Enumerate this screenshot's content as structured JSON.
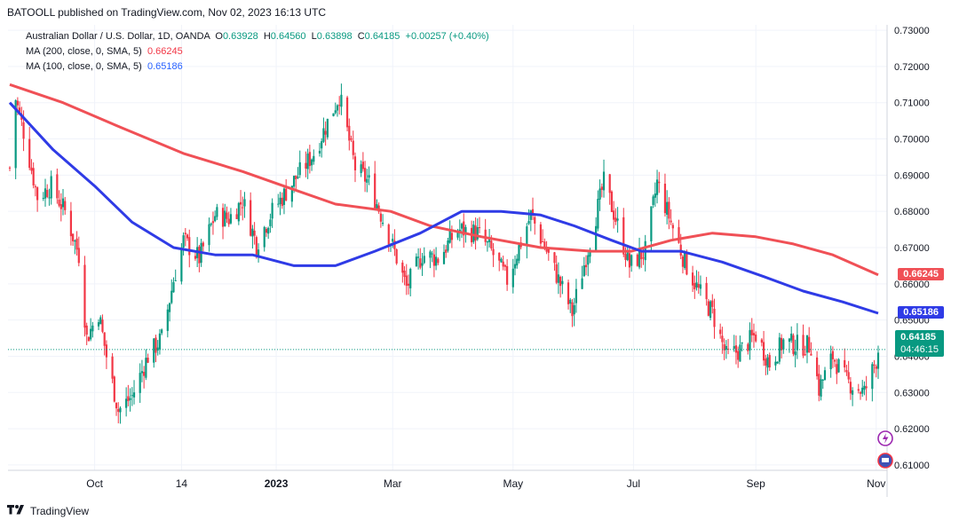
{
  "header": {
    "publisher_line": "BATOOLL published on TradingView.com, Nov 02, 2023 16:13 UTC"
  },
  "legend": {
    "symbol": "Australian Dollar / U.S. Dollar, 1D, OANDA",
    "o_label": "O",
    "o": "0.63928",
    "h_label": "H",
    "h": "0.64560",
    "l_label": "L",
    "l": "0.63898",
    "c_label": "C",
    "c": "0.64185",
    "change": "+0.00257 (+0.40%)",
    "ma200_label": "MA (200, close, 0, SMA, 5)",
    "ma200_value": "0.66245",
    "ma100_label": "MA (100, close, 0, SMA, 5)",
    "ma100_value": "0.65186"
  },
  "price_tags": {
    "ma200": "0.66245",
    "ma100": "0.65186",
    "last": "0.64185",
    "countdown": "04:46:15"
  },
  "colors": {
    "up": "#089981",
    "down": "#f23645",
    "ma200": "#f05056",
    "ma100": "#2f3be6",
    "grid": "#f0f3fa",
    "axis_text": "#131722"
  },
  "chart_data": {
    "type": "candlestick",
    "symbol": "AUDUSD",
    "timeframe": "1D",
    "y_ticks": [
      "0.73000",
      "0.72000",
      "0.71000",
      "0.70000",
      "0.69000",
      "0.68000",
      "0.67000",
      "0.66000",
      "0.65000",
      "0.64000",
      "0.63000",
      "0.62000",
      "0.61000"
    ],
    "ylim": [
      0.6085,
      0.7315
    ],
    "x_ticks": [
      {
        "label": "Oct",
        "date": "2022-10-01"
      },
      {
        "label": "14",
        "date": "2022-11-14"
      },
      {
        "label": "2023",
        "date": "2023-01-01"
      },
      {
        "label": "Mar",
        "date": "2023-03-01"
      },
      {
        "label": "May",
        "date": "2023-05-01"
      },
      {
        "label": "Jul",
        "date": "2023-07-01"
      },
      {
        "label": "Sep",
        "date": "2023-09-01"
      },
      {
        "label": "Nov",
        "date": "2023-11-01"
      }
    ],
    "xlim": [
      "2022-08-19",
      "2023-11-02"
    ],
    "close_path": [
      [
        "2022-08-19",
        0.692
      ],
      [
        "2022-08-22",
        0.711
      ],
      [
        "2022-08-26",
        0.702
      ],
      [
        "2022-09-02",
        0.684
      ],
      [
        "2022-09-09",
        0.687
      ],
      [
        "2022-09-16",
        0.68
      ],
      [
        "2022-09-23",
        0.668
      ],
      [
        "2022-09-27",
        0.645
      ],
      [
        "2022-10-03",
        0.652
      ],
      [
        "2022-10-07",
        0.64
      ],
      [
        "2022-10-13",
        0.625
      ],
      [
        "2022-10-20",
        0.629
      ],
      [
        "2022-10-28",
        0.64
      ],
      [
        "2022-11-04",
        0.645
      ],
      [
        "2022-11-10",
        0.661
      ],
      [
        "2022-11-15",
        0.672
      ],
      [
        "2022-11-23",
        0.667
      ],
      [
        "2022-12-01",
        0.679
      ],
      [
        "2022-12-08",
        0.678
      ],
      [
        "2022-12-15",
        0.683
      ],
      [
        "2022-12-22",
        0.671
      ],
      [
        "2022-12-30",
        0.68
      ],
      [
        "2023-01-12",
        0.69
      ],
      [
        "2023-01-20",
        0.696
      ],
      [
        "2023-02-02",
        0.712
      ],
      [
        "2023-02-10",
        0.692
      ],
      [
        "2023-02-17",
        0.688
      ],
      [
        "2023-02-28",
        0.672
      ],
      [
        "2023-03-08",
        0.659
      ],
      [
        "2023-03-16",
        0.668
      ],
      [
        "2023-03-24",
        0.667
      ],
      [
        "2023-04-03",
        0.675
      ],
      [
        "2023-04-13",
        0.674
      ],
      [
        "2023-04-20",
        0.669
      ],
      [
        "2023-04-28",
        0.661
      ],
      [
        "2023-05-10",
        0.679
      ],
      [
        "2023-05-18",
        0.669
      ],
      [
        "2023-05-31",
        0.652
      ],
      [
        "2023-06-09",
        0.672
      ],
      [
        "2023-06-16",
        0.688
      ],
      [
        "2023-06-22",
        0.678
      ],
      [
        "2023-06-29",
        0.665
      ],
      [
        "2023-07-07",
        0.669
      ],
      [
        "2023-07-13",
        0.688
      ],
      [
        "2023-07-20",
        0.677
      ],
      [
        "2023-07-27",
        0.666
      ],
      [
        "2023-08-03",
        0.658
      ],
      [
        "2023-08-10",
        0.652
      ],
      [
        "2023-08-17",
        0.64
      ],
      [
        "2023-08-25",
        0.642
      ],
      [
        "2023-09-01",
        0.646
      ],
      [
        "2023-09-08",
        0.638
      ],
      [
        "2023-09-15",
        0.644
      ],
      [
        "2023-09-22",
        0.643
      ],
      [
        "2023-09-29",
        0.643
      ],
      [
        "2023-10-03",
        0.631
      ],
      [
        "2023-10-10",
        0.64
      ],
      [
        "2023-10-17",
        0.633
      ],
      [
        "2023-10-26",
        0.63
      ],
      [
        "2023-11-01",
        0.639
      ],
      [
        "2023-11-02",
        0.64185
      ]
    ],
    "series": [
      {
        "name": "MA (200, close, 0, SMA, 5)",
        "line_values": [
          [
            "2022-08-19",
            0.715
          ],
          [
            "2022-09-15",
            0.71
          ],
          [
            "2022-10-15",
            0.703
          ],
          [
            "2022-11-15",
            0.696
          ],
          [
            "2022-12-15",
            0.691
          ],
          [
            "2023-01-10",
            0.686
          ],
          [
            "2023-01-31",
            0.682
          ],
          [
            "2023-02-28",
            0.68
          ],
          [
            "2023-03-20",
            0.676
          ],
          [
            "2023-04-15",
            0.673
          ],
          [
            "2023-05-15",
            0.67
          ],
          [
            "2023-06-10",
            0.669
          ],
          [
            "2023-06-30",
            0.669
          ],
          [
            "2023-07-20",
            0.672
          ],
          [
            "2023-08-10",
            0.674
          ],
          [
            "2023-09-01",
            0.673
          ],
          [
            "2023-09-20",
            0.671
          ],
          [
            "2023-10-10",
            0.668
          ],
          [
            "2023-11-02",
            0.66245
          ]
        ]
      },
      {
        "name": "MA (100, close, 0, SMA, 5)",
        "line_values": [
          [
            "2022-08-19",
            0.71
          ],
          [
            "2022-09-10",
            0.697
          ],
          [
            "2022-10-01",
            0.687
          ],
          [
            "2022-10-20",
            0.677
          ],
          [
            "2022-11-10",
            0.67
          ],
          [
            "2022-12-01",
            0.668
          ],
          [
            "2022-12-20",
            0.668
          ],
          [
            "2023-01-10",
            0.665
          ],
          [
            "2023-01-31",
            0.665
          ],
          [
            "2023-02-20",
            0.669
          ],
          [
            "2023-03-15",
            0.674
          ],
          [
            "2023-04-05",
            0.68
          ],
          [
            "2023-04-25",
            0.68
          ],
          [
            "2023-05-15",
            0.679
          ],
          [
            "2023-06-01",
            0.676
          ],
          [
            "2023-06-20",
            0.672
          ],
          [
            "2023-07-05",
            0.669
          ],
          [
            "2023-07-25",
            0.669
          ],
          [
            "2023-08-15",
            0.666
          ],
          [
            "2023-09-05",
            0.662
          ],
          [
            "2023-09-25",
            0.658
          ],
          [
            "2023-10-15",
            0.655
          ],
          [
            "2023-11-02",
            0.65186
          ]
        ]
      }
    ],
    "last_price": 0.64185,
    "grid": true
  }
}
